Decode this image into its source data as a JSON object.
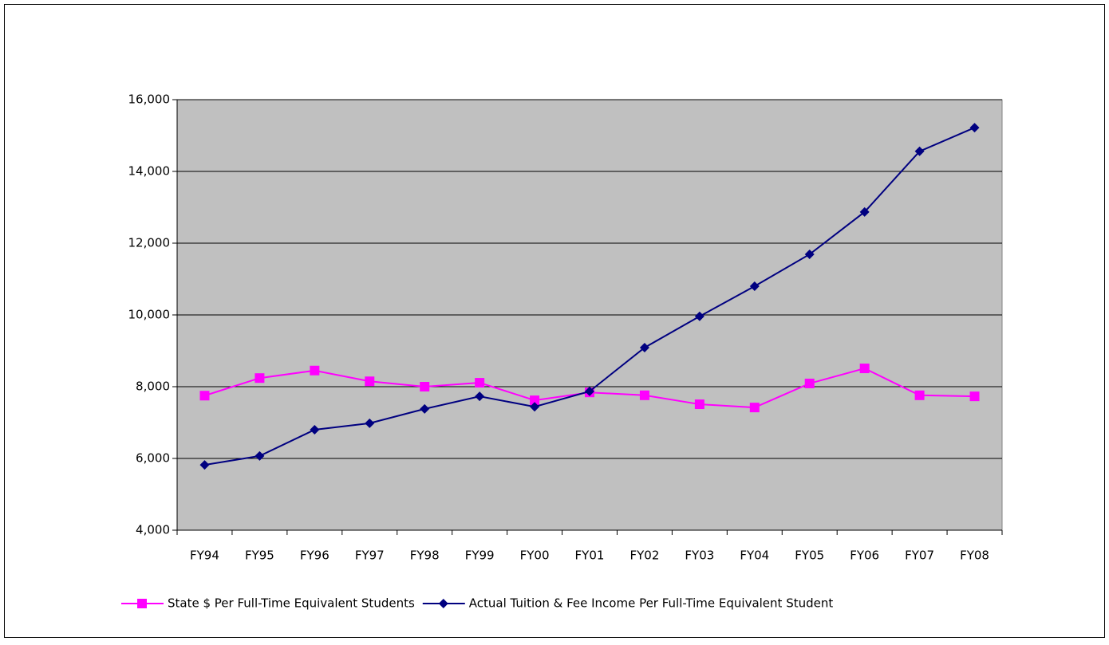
{
  "chart_data": {
    "type": "line",
    "categories": [
      "FY94",
      "FY95",
      "FY96",
      "FY97",
      "FY98",
      "FY99",
      "FY00",
      "FY01",
      "FY02",
      "FY03",
      "FY04",
      "FY05",
      "FY06",
      "FY07",
      "FY08"
    ],
    "series": [
      {
        "name": "State $ Per Full-Time Equivalent Students",
        "color": "#ff00ff",
        "marker": "square",
        "values": [
          7750,
          8240,
          8450,
          8150,
          8000,
          8110,
          7620,
          7840,
          7760,
          7510,
          7420,
          8090,
          8510,
          7760,
          7730
        ]
      },
      {
        "name": "Actual Tuition & Fee Income Per Full-Time Equivalent Student",
        "color": "#000080",
        "marker": "diamond",
        "values": [
          5820,
          6070,
          6800,
          6980,
          7380,
          7730,
          7440,
          7870,
          9090,
          9960,
          10800,
          11690,
          12870,
          14560,
          15220
        ]
      }
    ],
    "ylim": [
      4000,
      16000
    ],
    "yticks": [
      {
        "value": 4000,
        "label": "4,000"
      },
      {
        "value": 6000,
        "label": "6,000"
      },
      {
        "value": 8000,
        "label": "8,000"
      },
      {
        "value": 10000,
        "label": "10,000"
      },
      {
        "value": 12000,
        "label": "12,000"
      },
      {
        "value": 14000,
        "label": "14,000"
      },
      {
        "value": 16000,
        "label": "16,000"
      }
    ],
    "grid": true,
    "legend": "bottom",
    "plot_background": "#c0c0c0"
  }
}
